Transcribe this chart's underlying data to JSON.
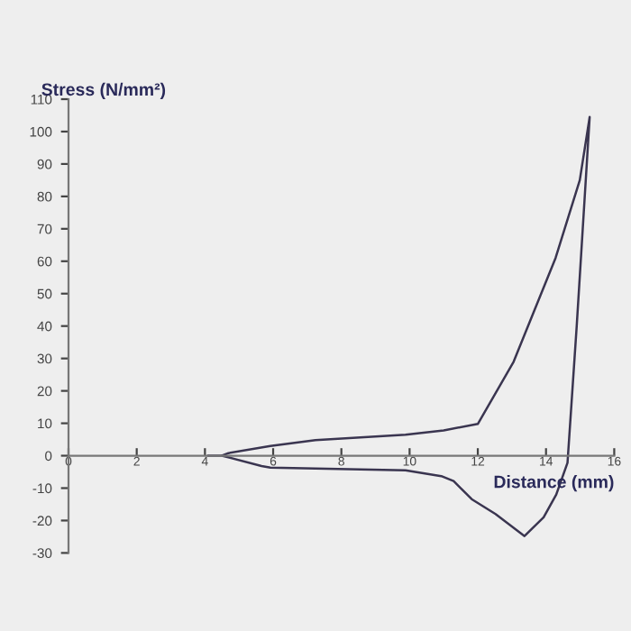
{
  "chart_data": {
    "type": "line",
    "xlabel": "Distance (mm)",
    "ylabel": "Stress (N/mm²)",
    "x": [
      4.1,
      4.5,
      4.69,
      5.92,
      7.24,
      9.88,
      11.0,
      12.0,
      13.05,
      14.28,
      14.99,
      15.28,
      14.9,
      14.63,
      14.3,
      13.93,
      13.37,
      12.52,
      11.82,
      11.29,
      10.93,
      9.88,
      5.92,
      5.66,
      4.5
    ],
    "series": [
      {
        "color": "#3a3550",
        "values": [
          0,
          0,
          0.8,
          3.0,
          4.8,
          6.5,
          7.8,
          9.8,
          29,
          61,
          85,
          104.5,
          40,
          -2.2,
          -12,
          -19,
          -24.8,
          -18,
          -13.4,
          -7.8,
          -6.3,
          -4.5,
          -3.7,
          -3.2,
          0
        ]
      }
    ],
    "xlim": [
      0,
      16
    ],
    "xticks": [
      0,
      2,
      4,
      6,
      8,
      10,
      12,
      14,
      16
    ],
    "ylim": [
      -30,
      110
    ],
    "yticks": [
      -30,
      -20,
      -10,
      0,
      10,
      20,
      30,
      40,
      50,
      60,
      70,
      80,
      90,
      100,
      110
    ],
    "grid": false,
    "legend": false,
    "marker": "none",
    "line_style": "solid"
  }
}
